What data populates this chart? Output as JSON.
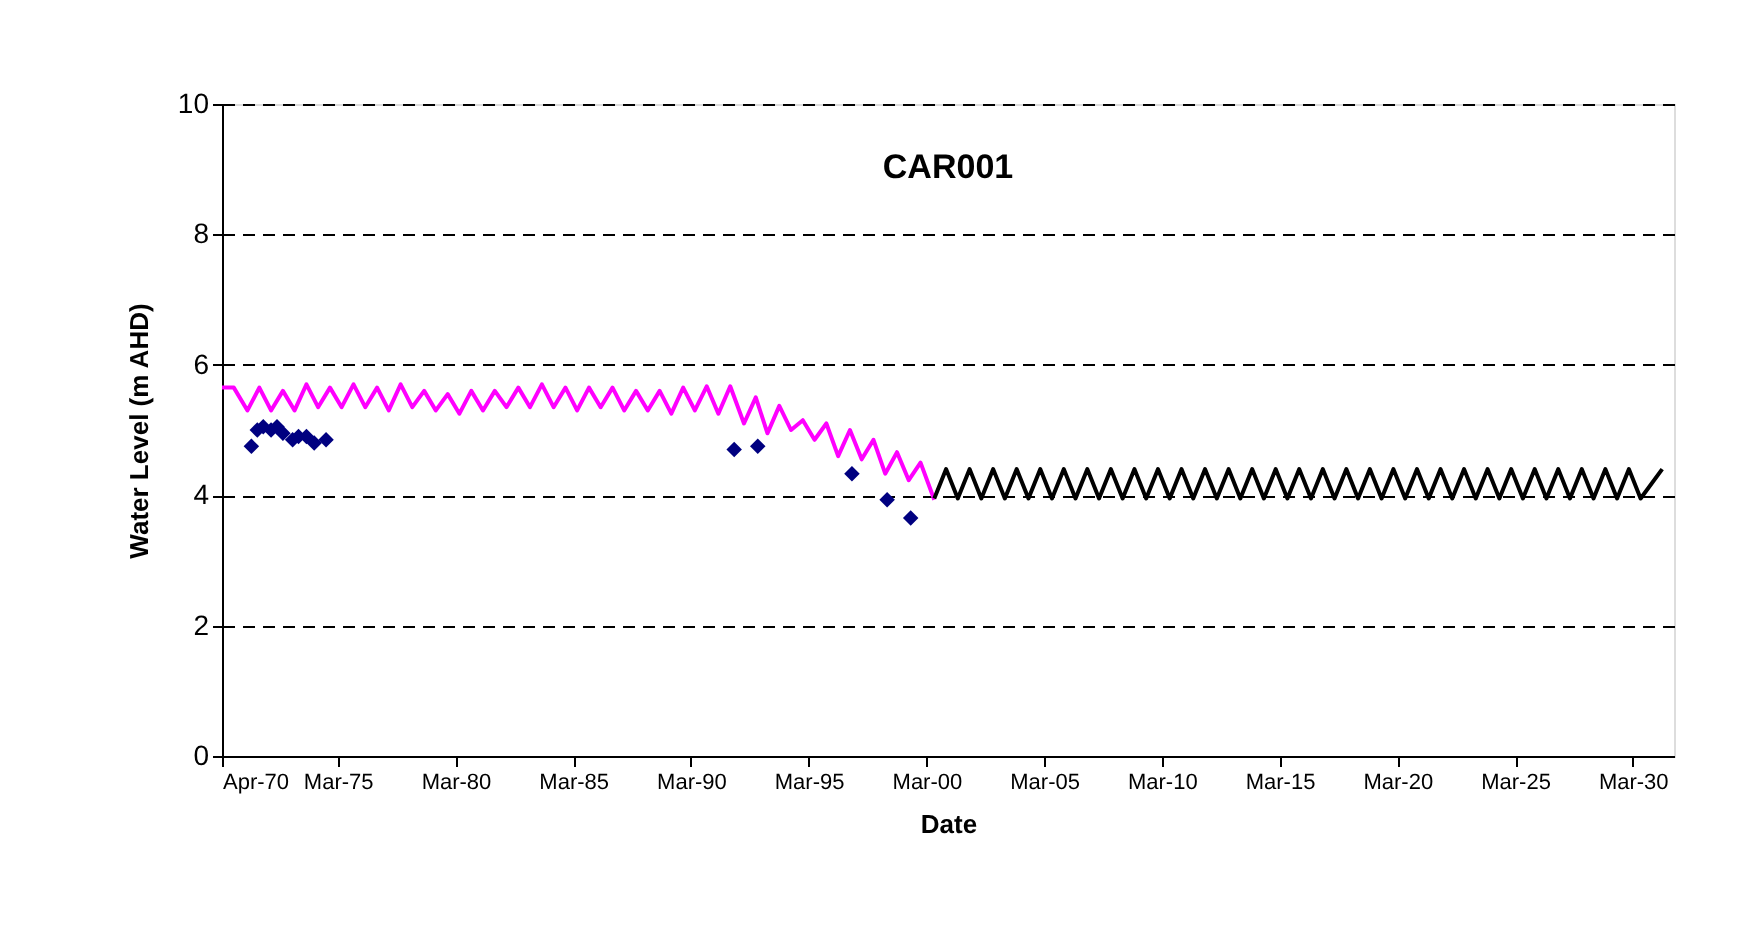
{
  "chart_data": {
    "type": "line",
    "title": "CAR001",
    "xlabel": "Date",
    "ylabel": "Water Level (m AHD)",
    "xlim": [
      "1970-04",
      "2031-12"
    ],
    "xticks": [
      {
        "value": "1970-04",
        "label": "Apr-70"
      },
      {
        "value": "1975-03",
        "label": "Mar-75"
      },
      {
        "value": "1980-03",
        "label": "Mar-80"
      },
      {
        "value": "1985-03",
        "label": "Mar-85"
      },
      {
        "value": "1990-03",
        "label": "Mar-90"
      },
      {
        "value": "1995-03",
        "label": "Mar-95"
      },
      {
        "value": "2000-03",
        "label": "Mar-00"
      },
      {
        "value": "2005-03",
        "label": "Mar-05"
      },
      {
        "value": "2010-03",
        "label": "Mar-10"
      },
      {
        "value": "2015-03",
        "label": "Mar-15"
      },
      {
        "value": "2020-03",
        "label": "Mar-20"
      },
      {
        "value": "2025-03",
        "label": "Mar-25"
      },
      {
        "value": "2030-03",
        "label": "Mar-30"
      }
    ],
    "ylim": [
      0,
      10
    ],
    "yticks": [
      0,
      2,
      4,
      6,
      8,
      10
    ],
    "grid": "y",
    "series": [
      {
        "type": "line",
        "color": "#ff00ff",
        "x": [
          "1970-04",
          "1970-10",
          "1971-05",
          "1971-11",
          "1972-05",
          "1972-11",
          "1973-05",
          "1973-11",
          "1974-05",
          "1974-11",
          "1975-05",
          "1975-11",
          "1976-05",
          "1976-11",
          "1977-05",
          "1977-11",
          "1978-05",
          "1978-11",
          "1979-05",
          "1979-11",
          "1980-05",
          "1980-11",
          "1981-05",
          "1981-11",
          "1982-05",
          "1982-11",
          "1983-05",
          "1983-11",
          "1984-05",
          "1984-11",
          "1985-05",
          "1985-11",
          "1986-05",
          "1986-11",
          "1987-05",
          "1987-11",
          "1988-05",
          "1988-11",
          "1989-05",
          "1989-11",
          "1990-05",
          "1990-11",
          "1991-05",
          "1991-11",
          "1992-06",
          "1992-12",
          "1993-06",
          "1993-12",
          "1994-06",
          "1994-12",
          "1995-06",
          "1995-12",
          "1996-06",
          "1996-12",
          "1997-06",
          "1997-12",
          "1998-06",
          "1998-12",
          "1999-06",
          "1999-12",
          "2000-07"
        ],
        "values": [
          5.65,
          5.65,
          5.3,
          5.65,
          5.3,
          5.6,
          5.3,
          5.7,
          5.35,
          5.65,
          5.35,
          5.7,
          5.35,
          5.65,
          5.3,
          5.7,
          5.35,
          5.6,
          5.3,
          5.55,
          5.25,
          5.6,
          5.3,
          5.6,
          5.35,
          5.65,
          5.35,
          5.7,
          5.35,
          5.65,
          5.3,
          5.65,
          5.35,
          5.65,
          5.3,
          5.6,
          5.3,
          5.6,
          5.25,
          5.65,
          5.3,
          5.67,
          5.25,
          5.67,
          5.1,
          5.5,
          4.95,
          5.37,
          5.0,
          5.15,
          4.85,
          5.1,
          4.6,
          5.0,
          4.55,
          4.85,
          4.33,
          4.66,
          4.23,
          4.5,
          3.93
        ]
      },
      {
        "type": "line",
        "color": "#000000",
        "x": [
          "2000-07",
          "2001-01",
          "2001-07",
          "2002-01",
          "2002-07",
          "2003-01",
          "2003-07",
          "2004-01",
          "2004-07",
          "2005-01",
          "2005-07",
          "2006-01",
          "2006-07",
          "2007-01",
          "2007-07",
          "2008-01",
          "2008-07",
          "2009-01",
          "2009-07",
          "2010-01",
          "2010-07",
          "2011-01",
          "2011-07",
          "2012-01",
          "2012-07",
          "2013-01",
          "2013-07",
          "2014-01",
          "2014-07",
          "2015-01",
          "2015-07",
          "2016-01",
          "2016-07",
          "2017-01",
          "2017-07",
          "2018-01",
          "2018-07",
          "2019-01",
          "2019-07",
          "2020-01",
          "2020-07",
          "2021-01",
          "2021-07",
          "2022-01",
          "2022-07",
          "2023-01",
          "2023-07",
          "2024-01",
          "2024-07",
          "2025-01",
          "2025-07",
          "2026-01",
          "2026-07",
          "2027-01",
          "2027-07",
          "2028-01",
          "2028-07",
          "2029-01",
          "2029-07",
          "2030-01",
          "2030-07",
          "2031-06"
        ],
        "values": [
          3.95,
          4.4,
          3.95,
          4.4,
          3.95,
          4.4,
          3.95,
          4.4,
          3.95,
          4.4,
          3.95,
          4.4,
          3.95,
          4.4,
          3.95,
          4.4,
          3.95,
          4.4,
          3.95,
          4.4,
          3.95,
          4.4,
          3.95,
          4.4,
          3.95,
          4.4,
          3.95,
          4.4,
          3.95,
          4.4,
          3.95,
          4.4,
          3.95,
          4.4,
          3.95,
          4.4,
          3.95,
          4.4,
          3.95,
          4.4,
          3.95,
          4.4,
          3.95,
          4.4,
          3.95,
          4.4,
          3.95,
          4.4,
          3.95,
          4.4,
          3.95,
          4.4,
          3.95,
          4.4,
          3.95,
          4.4,
          3.95,
          4.4,
          3.95,
          4.4,
          3.95,
          4.4
        ]
      },
      {
        "type": "scatter",
        "color": "#000080",
        "marker": "diamond",
        "x": [
          "1971-07",
          "1971-10",
          "1972-01",
          "1972-05",
          "1972-08",
          "1972-11",
          "1973-04",
          "1973-07",
          "1973-11",
          "1974-03",
          "1974-09",
          "1992-01",
          "1993-01",
          "1997-01",
          "1998-07",
          "1999-07"
        ],
        "values": [
          4.75,
          5.0,
          5.05,
          5.0,
          5.05,
          4.95,
          4.85,
          4.9,
          4.9,
          4.8,
          4.85,
          4.7,
          4.75,
          4.33,
          3.93,
          3.65
        ]
      }
    ]
  }
}
